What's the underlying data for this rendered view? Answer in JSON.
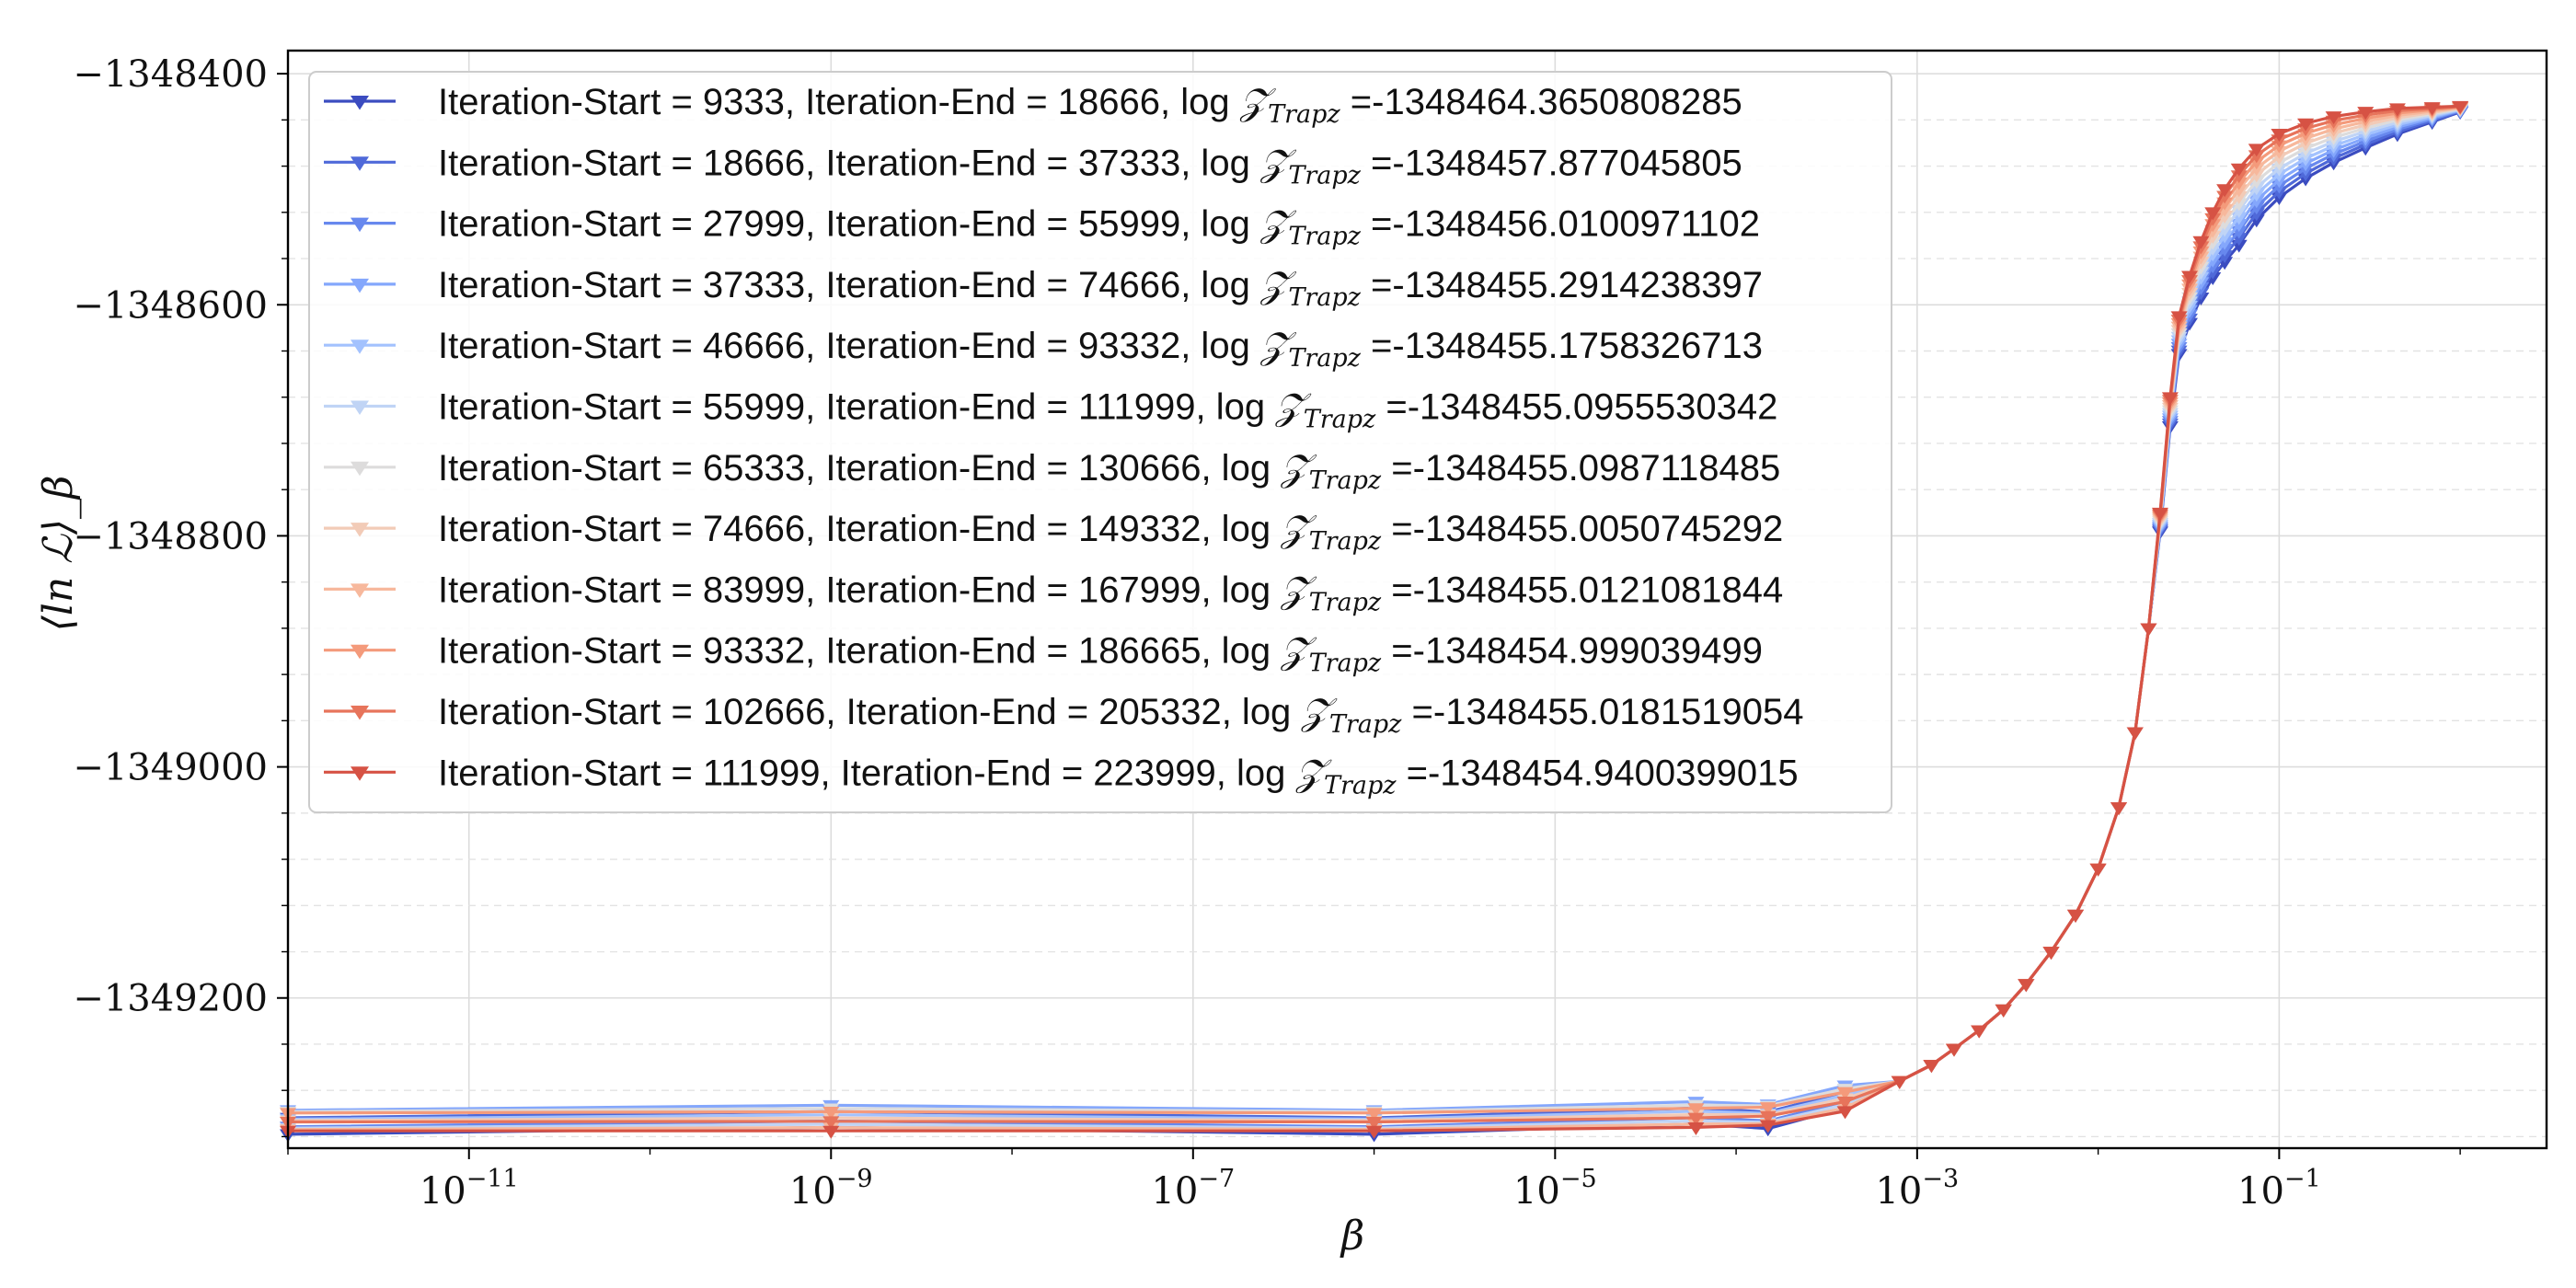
{
  "chart_data": {
    "type": "line",
    "xlabel": "β",
    "ylabel": "⟨ln ℒ⟩_β",
    "xscale": "log",
    "xlim": [
      1e-12,
      3
    ],
    "ylim": [
      -1349330,
      -1348380
    ],
    "x_ticks": [
      {
        "base": "10",
        "exp": "−11"
      },
      {
        "base": "10",
        "exp": "−9"
      },
      {
        "base": "10",
        "exp": "−7"
      },
      {
        "base": "10",
        "exp": "−5"
      },
      {
        "base": "10",
        "exp": "−3"
      },
      {
        "base": "10",
        "exp": "−1"
      }
    ],
    "y_ticks": [
      "−1348400",
      "−1348600",
      "−1348800",
      "−1349000",
      "−1349200"
    ],
    "grid": true,
    "legend_position": "upper-left",
    "marker": "triangle-down",
    "series": [
      {
        "name": "Iteration-Start = 9333, Iteration-End = 18666, log",
        "logz": "=-1348464.3650808285",
        "color": "#3b4cc0"
      },
      {
        "name": "Iteration-Start = 18666, Iteration-End = 37333, log",
        "logz": "=-1348457.877045805",
        "color": "#4f69d9"
      },
      {
        "name": "Iteration-Start = 27999, Iteration-End = 55999, log",
        "logz": "=-1348456.0100971102",
        "color": "#6788ee"
      },
      {
        "name": "Iteration-Start = 37333, Iteration-End = 74666, log",
        "logz": "=-1348455.2914238397",
        "color": "#84a7fc"
      },
      {
        "name": "Iteration-Start = 46666, Iteration-End = 93332, log",
        "logz": "=-1348455.1758326713",
        "color": "#a3c2fe"
      },
      {
        "name": "Iteration-Start = 55999, Iteration-End = 111999, log",
        "logz": "=-1348455.0955530342",
        "color": "#c0d4f5"
      },
      {
        "name": "Iteration-Start = 65333, Iteration-End = 130666, log",
        "logz": "=-1348455.0987118485",
        "color": "#dddcdc"
      },
      {
        "name": "Iteration-Start = 74666, Iteration-End = 149332, log",
        "logz": "=-1348455.0050745292",
        "color": "#f2cbb7"
      },
      {
        "name": "Iteration-Start = 83999, Iteration-End = 167999, log",
        "logz": "=-1348455.0121081844",
        "color": "#f7b89c"
      },
      {
        "name": "Iteration-Start = 93332, Iteration-End = 186665, log",
        "logz": "=-1348454.999039499",
        "color": "#f49a7b"
      },
      {
        "name": "Iteration-Start = 102666, Iteration-End = 205332, log",
        "logz": "=-1348455.0181519054",
        "color": "#e7745b"
      },
      {
        "name": "Iteration-Start = 111999, Iteration-End = 223999, log",
        "logz": "=-1348454.9400399015",
        "color": "#d65244"
      }
    ],
    "base_curve": {
      "x": [
        1e-12,
        1e-09,
        1e-06,
        6e-05,
        0.00015,
        0.0004,
        0.0008,
        0.0012,
        0.0016,
        0.0022,
        0.003,
        0.004,
        0.0055,
        0.0075,
        0.01,
        0.013,
        0.016,
        0.019,
        0.022,
        0.025,
        0.028,
        0.032,
        0.037,
        0.043,
        0.05,
        0.06,
        0.075,
        0.1,
        0.14,
        0.2,
        0.3,
        0.45,
        0.7,
        1.0
      ],
      "y": [
        -1349305,
        -1349305,
        -1349305,
        -1349302,
        -1349300,
        -1349288,
        -1349272,
        -1349258,
        -1349244,
        -1349228,
        -1349210,
        -1349188,
        -1349160,
        -1349128,
        -1349088,
        -1349035,
        -1348970,
        -1348880,
        -1348780,
        -1348680,
        -1348610,
        -1348575,
        -1348545,
        -1348520,
        -1348500,
        -1348482,
        -1348465,
        -1348452,
        -1348443,
        -1348437,
        -1348433,
        -1348430,
        -1348429,
        -1348428
      ]
    }
  },
  "legend": {
    "z_symbol": "𝒵",
    "z_subscript": "Trapz"
  }
}
